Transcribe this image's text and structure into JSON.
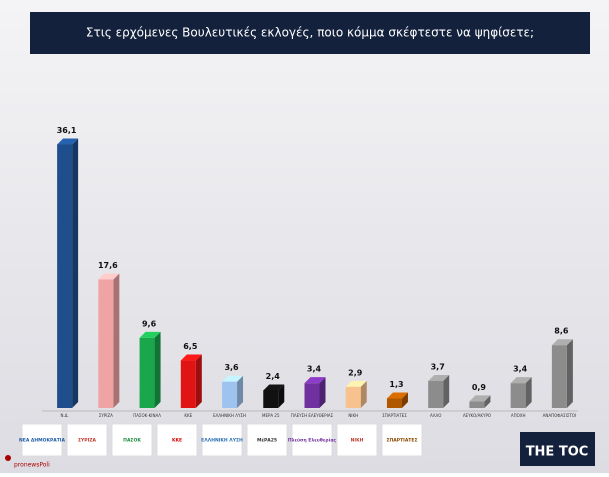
{
  "chart_data": {
    "type": "bar3d",
    "title": "Στις ερχόμενες Βουλευτικές εκλογές, ποιο κόμμα σκέφτεστε να ψηφίσετε;",
    "categories": [
      "Ν.Δ.",
      "ΣΥΡΙΖΑ",
      "ΠΑΣΟΚ-ΚΙΝΑΛ",
      "ΚΚΕ",
      "ΕΛΛΗΝΙΚΗ ΛΥΣΗ",
      "ΜΕΡΑ 25",
      "ΠΛΕΥΣΗ ΕΛΕΥΘΕΡΙΑΣ",
      "ΝΙΚΗ",
      "ΣΠΑΡΤΙΑΤΕΣ",
      "ΑΛΛΟ",
      "ΛΕΥΚΟ/ΑΚΥΡΟ",
      "ΑΠΟΧΗ",
      "ΑΝΑΠΟΦΑΣΙΣΤΟΙ"
    ],
    "values": [
      36.1,
      17.6,
      9.6,
      6.5,
      3.6,
      2.4,
      3.4,
      2.9,
      1.3,
      3.7,
      0.9,
      3.4,
      8.6
    ],
    "value_labels": [
      "36,1",
      "17,6",
      "9,6",
      "6,5",
      "3,6",
      "2,4",
      "3,4",
      "2,9",
      "1,3",
      "3,7",
      "0,9",
      "3,4",
      "8,6"
    ],
    "colors": [
      "#1f4e8c",
      "#f0a3a3",
      "#1aa64a",
      "#e01414",
      "#9fc3ef",
      "#111111",
      "#7030a0",
      "#f7c28e",
      "#b05800",
      "#8c8c8c",
      "#8c8c8c",
      "#8c8c8c",
      "#8c8c8c"
    ],
    "ylim": [
      0,
      40
    ]
  },
  "logos": [
    "ΝΕΑ ΔΗΜΟΚΡΑΤΙΑ",
    "ΣΥΡΙΖΑ",
    "ΠΑΣΟΚ",
    "ΚΚΕ",
    "ΕΛΛΗΝΙΚΗ ΛΥΣΗ",
    "ΜέΡΑ25",
    "Πλεύση Ελευθερίας",
    "ΝΙΚΗ",
    "ΣΠΑΡΤΙΑΤΕΣ"
  ],
  "brand": "THE TOC",
  "source": "pronewsPoli"
}
